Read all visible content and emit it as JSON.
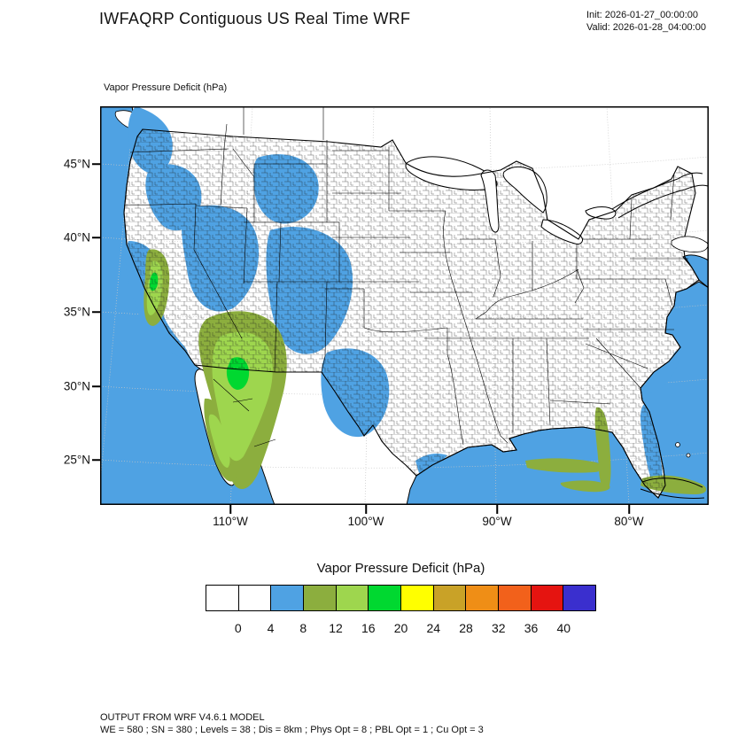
{
  "header": {
    "title": "IWFAQRP Contiguous US Real Time WRF",
    "init": "Init: 2026-01-27_00:00:00",
    "valid": "Valid: 2026-01-28_04:00:00"
  },
  "map": {
    "field_label": "Vapor Pressure Deficit  (hPa)",
    "lat_ticks": [
      {
        "label": "45°N",
        "pos": 65
      },
      {
        "label": "40°N",
        "pos": 148
      },
      {
        "label": "35°N",
        "pos": 232
      },
      {
        "label": "30°N",
        "pos": 316
      },
      {
        "label": "25°N",
        "pos": 399
      }
    ],
    "lon_ticks": [
      {
        "label": "110°W",
        "pos": 147
      },
      {
        "label": "100°W",
        "pos": 300
      },
      {
        "label": "90°W",
        "pos": 448
      },
      {
        "label": "80°W",
        "pos": 597
      }
    ]
  },
  "colorbar": {
    "title": "Vapor Pressure Deficit  (hPa)",
    "colors": [
      "#FFFFFF",
      "#FFFFFF",
      "#4FA2E3",
      "#8CAE3E",
      "#9ED64E",
      "#00D830",
      "#FFFF00",
      "#C9A227",
      "#EF8E16",
      "#F2611B",
      "#E51410",
      "#3A2FCE"
    ],
    "tick_labels": [
      "0",
      "4",
      "8",
      "12",
      "16",
      "20",
      "24",
      "28",
      "32",
      "36",
      "40"
    ]
  },
  "footer": {
    "line1": "OUTPUT FROM WRF V4.6.1 MODEL",
    "line2": "WE = 580 ; SN = 380 ; Levels = 38 ; Dis = 8km ; Phys Opt = 8 ; PBL Opt = 1 ; Cu Opt = 3"
  },
  "colors": {
    "ocean_blue": "#4FA2E3",
    "olive_green": "#8CAE3E",
    "yellow_green": "#9ED64E",
    "bright_green": "#00D830"
  },
  "chart_data": {
    "type": "heatmap",
    "title": "Vapor Pressure Deficit (hPa)",
    "region": "Contiguous US WRF domain (Lambert conformal map with county outlines)",
    "x_tick_labels": [
      "110°W",
      "100°W",
      "90°W",
      "80°W"
    ],
    "y_tick_labels": [
      "45°N",
      "40°N",
      "35°N",
      "30°N",
      "25°N"
    ],
    "colorbar_levels_hPa": [
      0,
      4,
      8,
      12,
      16,
      20,
      24,
      28,
      32,
      36,
      40
    ],
    "colorbar_colors": [
      "#FFFFFF",
      "#FFFFFF",
      "#4FA2E3",
      "#8CAE3E",
      "#9ED64E",
      "#00D830",
      "#FFFF00",
      "#C9A227",
      "#EF8E16",
      "#F2611B",
      "#E51410",
      "#3A2FCE"
    ],
    "observed_pattern": "Oceans (Pacific, Gulf of Mexico, Atlantic) and much of the western US shaded 4-8 hPa (blue); 8-20 hPa (olive/yellow-green/green) over California Central Valley, southern Arizona, Sonora, Baja California, Cuba and streaks over the eastern Gulf; central and eastern US mostly below 4 hPa (white)."
  }
}
